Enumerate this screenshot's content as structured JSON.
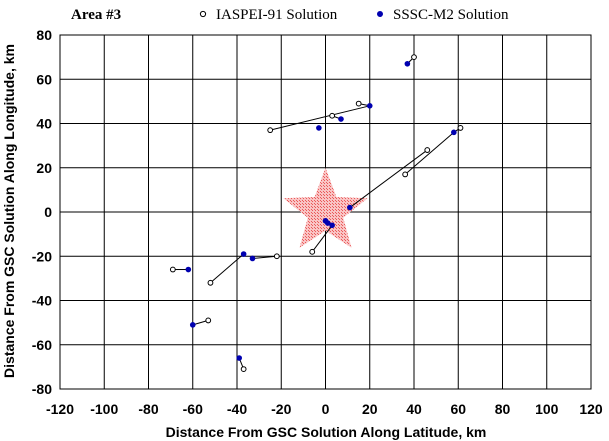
{
  "chart_data": {
    "type": "scatter",
    "area_label": "Area #3",
    "title": "",
    "xlabel": "Distance From GSC Solution Along Latitude, km",
    "ylabel": "Distance From GSC Solution Along Longitude, km",
    "xlim": [
      -120,
      120
    ],
    "ylim": [
      -80,
      80
    ],
    "xticks": [
      -120,
      -100,
      -80,
      -60,
      -40,
      -20,
      0,
      20,
      40,
      60,
      80,
      100,
      120
    ],
    "yticks": [
      -80,
      -60,
      -40,
      -20,
      0,
      20,
      40,
      60,
      80
    ],
    "grid": true,
    "legend_position": "top",
    "series": [
      {
        "name": "IASPEI-91 Solution",
        "marker": "open-circle",
        "color": "#000000",
        "points": [
          [
            40,
            70
          ],
          [
            15,
            49
          ],
          [
            3,
            43.5
          ],
          [
            -25,
            37
          ],
          [
            61,
            38
          ],
          [
            46,
            28
          ],
          [
            36,
            17
          ],
          [
            -6,
            -18
          ],
          [
            -22,
            -20
          ],
          [
            -52,
            -32
          ],
          [
            -69,
            -26
          ],
          [
            -53,
            -49
          ],
          [
            -37,
            -71
          ]
        ]
      },
      {
        "name": "SSSC-M2 Solution",
        "marker": "filled-circle",
        "color": "#0000b0",
        "points": [
          [
            37,
            67
          ],
          [
            20,
            48
          ],
          [
            7,
            42
          ],
          [
            -3,
            38
          ],
          [
            58,
            36
          ],
          [
            11,
            2
          ],
          [
            0,
            -4
          ],
          [
            1,
            -5
          ],
          [
            3,
            -6
          ],
          [
            -37,
            -19
          ],
          [
            -33,
            -21
          ],
          [
            -62,
            -26
          ],
          [
            -60,
            -51
          ],
          [
            -39,
            -66
          ]
        ]
      }
    ],
    "links": [
      [
        [
          40,
          70
        ],
        [
          37,
          67
        ]
      ],
      [
        [
          15,
          49
        ],
        [
          20,
          48
        ]
      ],
      [
        [
          3,
          43.5
        ],
        [
          7,
          42
        ]
      ],
      [
        [
          -25,
          37
        ],
        [
          20,
          48
        ]
      ],
      [
        [
          61,
          38
        ],
        [
          58,
          36
        ]
      ],
      [
        [
          46,
          28
        ],
        [
          11,
          2
        ]
      ],
      [
        [
          36,
          17
        ],
        [
          58,
          36
        ]
      ],
      [
        [
          -6,
          -18
        ],
        [
          3,
          -6
        ]
      ],
      [
        [
          -22,
          -20
        ],
        [
          -33,
          -21
        ]
      ],
      [
        [
          -52,
          -32
        ],
        [
          -37,
          -19
        ]
      ],
      [
        [
          -69,
          -26
        ],
        [
          -62,
          -26
        ]
      ],
      [
        [
          -53,
          -49
        ],
        [
          -60,
          -51
        ]
      ],
      [
        [
          -37,
          -71
        ],
        [
          -39,
          -66
        ]
      ]
    ],
    "reference_marker": {
      "shape": "star",
      "x": 0,
      "y": 0,
      "radius_km": 20,
      "color": "#f08080"
    }
  }
}
